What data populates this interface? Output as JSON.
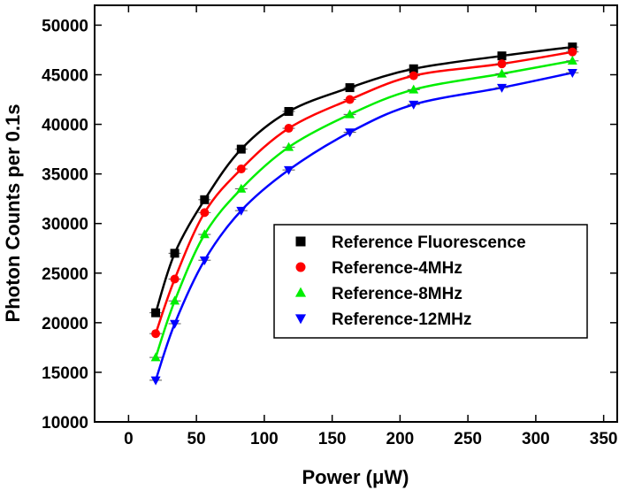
{
  "chart_data": {
    "type": "scatter",
    "xlabel": "Power (μW)",
    "ylabel": "Photon Counts per 0.1s",
    "xlim": [
      -25,
      360
    ],
    "ylim": [
      10000,
      52000
    ],
    "xticks": [
      0,
      50,
      100,
      150,
      200,
      250,
      300,
      350
    ],
    "yticks": [
      10000,
      15000,
      20000,
      25000,
      30000,
      35000,
      40000,
      45000,
      50000
    ],
    "grid": false,
    "legend_position": "center-right",
    "series": [
      {
        "name": "Reference Fluorescence",
        "marker": "square",
        "color": "#000000",
        "x": [
          20,
          34,
          56,
          83,
          118,
          163,
          210,
          275,
          327
        ],
        "y": [
          21000,
          27000,
          32400,
          37500,
          41300,
          43700,
          45600,
          46900,
          47800
        ]
      },
      {
        "name": "Reference-4MHz",
        "marker": "circle",
        "color": "#ff0000",
        "x": [
          20,
          34,
          56,
          83,
          118,
          163,
          210,
          275,
          327
        ],
        "y": [
          18900,
          24400,
          31100,
          35500,
          39600,
          42500,
          44900,
          46100,
          47300
        ]
      },
      {
        "name": "Reference-8MHz",
        "marker": "triangle-up",
        "color": "#00ee00",
        "x": [
          20,
          34,
          56,
          83,
          118,
          163,
          210,
          275,
          327
        ],
        "y": [
          16500,
          22200,
          28900,
          33500,
          37700,
          41000,
          43500,
          45100,
          46400
        ]
      },
      {
        "name": "Reference-12MHz",
        "marker": "triangle-down",
        "color": "#0000ff",
        "x": [
          20,
          34,
          56,
          83,
          118,
          163,
          210,
          275,
          327
        ],
        "y": [
          14200,
          19900,
          26300,
          31300,
          35400,
          39200,
          42000,
          43700,
          45200
        ]
      }
    ]
  }
}
